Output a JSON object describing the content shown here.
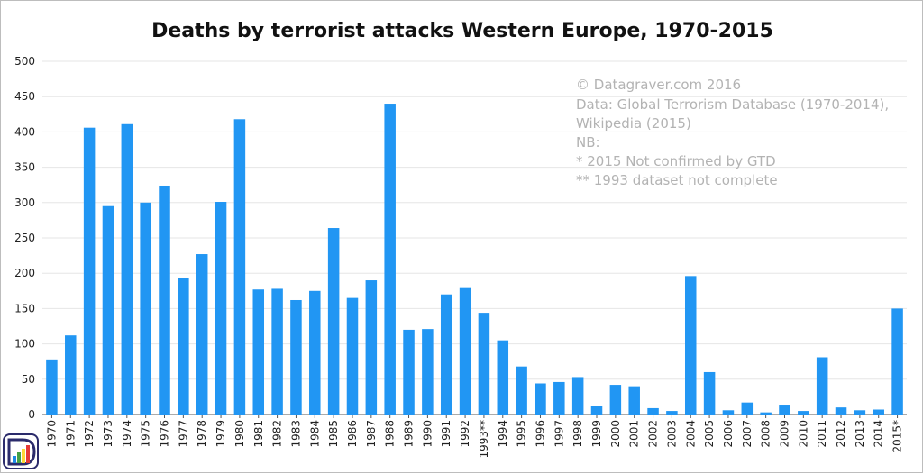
{
  "chart_data": {
    "type": "bar",
    "title": "Deaths by terrorist attacks Western Europe, 1970-2015",
    "xlabel": "",
    "ylabel": "",
    "ylim": [
      0,
      500
    ],
    "yticks": [
      0,
      50,
      100,
      150,
      200,
      250,
      300,
      350,
      400,
      450,
      500
    ],
    "grid": true,
    "bar_color": "#2196f3",
    "categories": [
      "1970",
      "1971",
      "1972",
      "1973",
      "1974",
      "1975",
      "1976",
      "1977",
      "1978",
      "1979",
      "1980",
      "1981",
      "1982",
      "1983",
      "1984",
      "1985",
      "1986",
      "1987",
      "1988",
      "1989",
      "1990",
      "1991",
      "1992",
      "1993**",
      "1994",
      "1995",
      "1996",
      "1997",
      "1998",
      "1999",
      "2000",
      "2001",
      "2002",
      "2003",
      "2004",
      "2005",
      "2006",
      "2007",
      "2008",
      "2009",
      "2010",
      "2011",
      "2012",
      "2013",
      "2014",
      "2015*"
    ],
    "values": [
      78,
      112,
      406,
      295,
      411,
      300,
      324,
      193,
      227,
      301,
      418,
      177,
      178,
      162,
      175,
      264,
      165,
      190,
      440,
      120,
      121,
      170,
      179,
      144,
      105,
      68,
      44,
      46,
      53,
      12,
      42,
      40,
      9,
      5,
      196,
      60,
      6,
      17,
      3,
      14,
      5,
      81,
      10,
      6,
      7,
      150
    ],
    "annotations": [
      "© Datagraver.com 2016",
      "Data: Global Terrorism Database (1970-2014),",
      "Wikipedia (2015)",
      "NB:",
      "* 2015 Not confirmed by GTD",
      "** 1993 dataset not complete"
    ]
  },
  "logo": {
    "name": "datagraver-logo-icon",
    "colors": [
      "#1e88e5",
      "#43a047",
      "#fdd835",
      "#e53935"
    ]
  }
}
